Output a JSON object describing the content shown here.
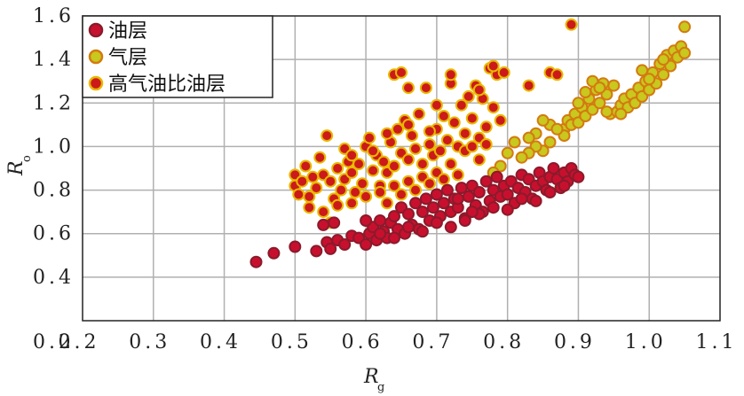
{
  "chart_data": {
    "type": "scatter",
    "xlabel": "R",
    "xlabel_sub": "g",
    "ylabel": "R",
    "ylabel_sub": "o",
    "xlim": [
      0.2,
      1.1
    ],
    "ylim": [
      0.2,
      1.6
    ],
    "x_ticks": [
      "0.2",
      "0.3",
      "0.4",
      "0.5",
      "0.6",
      "0.7",
      "0.8",
      "0.9",
      "1.0",
      "1.1"
    ],
    "y_ticks": [
      "0.4",
      "0.6",
      "0.8",
      "1.0",
      "1.2",
      "1.4",
      "1.6"
    ],
    "grid": true,
    "legend_position": "top-left",
    "series": [
      {
        "name": "油层",
        "fill": "#c8102e",
        "stroke": "#8b1a2b",
        "points": [
          [
            0.445,
            0.47
          ],
          [
            0.47,
            0.51
          ],
          [
            0.5,
            0.54
          ],
          [
            0.53,
            0.52
          ],
          [
            0.545,
            0.56
          ],
          [
            0.55,
            0.53
          ],
          [
            0.56,
            0.57
          ],
          [
            0.57,
            0.55
          ],
          [
            0.58,
            0.59
          ],
          [
            0.59,
            0.58
          ],
          [
            0.6,
            0.55
          ],
          [
            0.605,
            0.6
          ],
          [
            0.61,
            0.63
          ],
          [
            0.615,
            0.57
          ],
          [
            0.62,
            0.66
          ],
          [
            0.625,
            0.61
          ],
          [
            0.63,
            0.58
          ],
          [
            0.635,
            0.65
          ],
          [
            0.64,
            0.68
          ],
          [
            0.645,
            0.62
          ],
          [
            0.65,
            0.72
          ],
          [
            0.655,
            0.6
          ],
          [
            0.66,
            0.69
          ],
          [
            0.665,
            0.64
          ],
          [
            0.67,
            0.74
          ],
          [
            0.675,
            0.62
          ],
          [
            0.68,
            0.7
          ],
          [
            0.685,
            0.76
          ],
          [
            0.69,
            0.66
          ],
          [
            0.695,
            0.72
          ],
          [
            0.7,
            0.78
          ],
          [
            0.705,
            0.68
          ],
          [
            0.71,
            0.74
          ],
          [
            0.715,
            0.8
          ],
          [
            0.72,
            0.7
          ],
          [
            0.725,
            0.76
          ],
          [
            0.73,
            0.72
          ],
          [
            0.735,
            0.81
          ],
          [
            0.74,
            0.67
          ],
          [
            0.745,
            0.77
          ],
          [
            0.75,
            0.82
          ],
          [
            0.755,
            0.73
          ],
          [
            0.76,
            0.79
          ],
          [
            0.765,
            0.7
          ],
          [
            0.77,
            0.84
          ],
          [
            0.775,
            0.75
          ],
          [
            0.78,
            0.8
          ],
          [
            0.785,
            0.86
          ],
          [
            0.79,
            0.77
          ],
          [
            0.795,
            0.82
          ],
          [
            0.8,
            0.78
          ],
          [
            0.805,
            0.84
          ],
          [
            0.81,
            0.74
          ],
          [
            0.815,
            0.81
          ],
          [
            0.82,
            0.87
          ],
          [
            0.825,
            0.79
          ],
          [
            0.83,
            0.85
          ],
          [
            0.835,
            0.76
          ],
          [
            0.84,
            0.82
          ],
          [
            0.845,
            0.88
          ],
          [
            0.85,
            0.84
          ],
          [
            0.855,
            0.8
          ],
          [
            0.86,
            0.86
          ],
          [
            0.865,
            0.9
          ],
          [
            0.87,
            0.85
          ],
          [
            0.875,
            0.81
          ],
          [
            0.88,
            0.88
          ],
          [
            0.885,
            0.84
          ],
          [
            0.89,
            0.9
          ],
          [
            0.895,
            0.87
          ],
          [
            0.54,
            0.64
          ],
          [
            0.555,
            0.65
          ],
          [
            0.6,
            0.66
          ],
          [
            0.62,
            0.6
          ],
          [
            0.64,
            0.58
          ],
          [
            0.66,
            0.63
          ],
          [
            0.68,
            0.61
          ],
          [
            0.7,
            0.65
          ],
          [
            0.72,
            0.63
          ],
          [
            0.74,
            0.66
          ],
          [
            0.76,
            0.69
          ],
          [
            0.78,
            0.72
          ],
          [
            0.8,
            0.71
          ],
          [
            0.82,
            0.76
          ],
          [
            0.84,
            0.75
          ],
          [
            0.86,
            0.79
          ],
          [
            0.88,
            0.82
          ],
          [
            0.9,
            0.86
          ],
          [
            0.73,
            0.76
          ],
          [
            0.75,
            0.7
          ]
        ]
      },
      {
        "name": "气层",
        "fill": "#c8c81e",
        "stroke": "#d47a10",
        "points": [
          [
            0.88,
            1.08
          ],
          [
            0.885,
            1.12
          ],
          [
            0.89,
            1.1
          ],
          [
            0.895,
            1.15
          ],
          [
            0.9,
            1.11
          ],
          [
            0.905,
            1.18
          ],
          [
            0.91,
            1.14
          ],
          [
            0.915,
            1.22
          ],
          [
            0.92,
            1.17
          ],
          [
            0.925,
            1.26
          ],
          [
            0.93,
            1.2
          ],
          [
            0.935,
            1.29
          ],
          [
            0.94,
            1.24
          ],
          [
            0.95,
            1.28
          ],
          [
            0.92,
            1.3
          ],
          [
            0.93,
            1.27
          ],
          [
            0.945,
            1.15
          ],
          [
            0.955,
            1.16
          ],
          [
            0.96,
            1.19
          ],
          [
            0.965,
            1.22
          ],
          [
            0.97,
            1.18
          ],
          [
            0.975,
            1.24
          ],
          [
            0.98,
            1.2
          ],
          [
            0.985,
            1.27
          ],
          [
            0.99,
            1.23
          ],
          [
            0.995,
            1.3
          ],
          [
            1.0,
            1.26
          ],
          [
            1.005,
            1.34
          ],
          [
            1.01,
            1.29
          ],
          [
            1.015,
            1.38
          ],
          [
            1.02,
            1.33
          ],
          [
            1.025,
            1.42
          ],
          [
            1.03,
            1.37
          ],
          [
            1.035,
            1.44
          ],
          [
            1.04,
            1.41
          ],
          [
            1.045,
            1.46
          ],
          [
            1.05,
            1.43
          ],
          [
            1.05,
            1.55
          ],
          [
            1.02,
            1.4
          ],
          [
            1.0,
            1.31
          ],
          [
            0.88,
            1.05
          ],
          [
            0.86,
            1.02
          ],
          [
            0.85,
            0.98
          ],
          [
            0.84,
            1.0
          ],
          [
            0.83,
            0.97
          ],
          [
            0.82,
            0.95
          ],
          [
            0.8,
            0.97
          ],
          [
            0.79,
            0.91
          ],
          [
            0.78,
            0.88
          ],
          [
            0.86,
            1.1
          ],
          [
            0.87,
            1.08
          ],
          [
            0.85,
            1.12
          ],
          [
            0.84,
            1.06
          ],
          [
            0.83,
            1.04
          ],
          [
            0.81,
            1.02
          ],
          [
            0.9,
            1.2
          ],
          [
            0.91,
            1.25
          ],
          [
            0.94,
            1.16
          ],
          [
            0.96,
            1.15
          ],
          [
            0.99,
            1.35
          ]
        ]
      },
      {
        "name": "高气油比油层",
        "fill": "#cc1a1a",
        "stroke": "#e8b800",
        "points": [
          [
            0.5,
            0.82
          ],
          [
            0.5,
            0.87
          ],
          [
            0.505,
            0.78
          ],
          [
            0.51,
            0.84
          ],
          [
            0.515,
            0.91
          ],
          [
            0.52,
            0.77
          ],
          [
            0.525,
            0.86
          ],
          [
            0.53,
            0.81
          ],
          [
            0.535,
            0.95
          ],
          [
            0.54,
            0.87
          ],
          [
            0.545,
            1.05
          ],
          [
            0.55,
            0.84
          ],
          [
            0.555,
            0.76
          ],
          [
            0.56,
            0.9
          ],
          [
            0.565,
            0.8
          ],
          [
            0.57,
            0.85
          ],
          [
            0.575,
            0.93
          ],
          [
            0.58,
            0.88
          ],
          [
            0.585,
            0.79
          ],
          [
            0.59,
            0.92
          ],
          [
            0.595,
            0.83
          ],
          [
            0.6,
            1.0
          ],
          [
            0.605,
            1.04
          ],
          [
            0.61,
            0.89
          ],
          [
            0.615,
            0.96
          ],
          [
            0.62,
            0.82
          ],
          [
            0.625,
            0.93
          ],
          [
            0.63,
            0.88
          ],
          [
            0.635,
            1.02
          ],
          [
            0.64,
            0.91
          ],
          [
            0.645,
            1.08
          ],
          [
            0.65,
            0.97
          ],
          [
            0.655,
            1.12
          ],
          [
            0.66,
            0.94
          ],
          [
            0.665,
            1.05
          ],
          [
            0.67,
            0.99
          ],
          [
            0.675,
            1.15
          ],
          [
            0.68,
            0.92
          ],
          [
            0.685,
            1.27
          ],
          [
            0.69,
            1.01
          ],
          [
            0.695,
            0.96
          ],
          [
            0.7,
            1.08
          ],
          [
            0.705,
            0.98
          ],
          [
            0.71,
            1.14
          ],
          [
            0.715,
            1.03
          ],
          [
            0.72,
            1.29
          ],
          [
            0.725,
            1.11
          ],
          [
            0.73,
            1.0
          ],
          [
            0.735,
            1.19
          ],
          [
            0.74,
            1.06
          ],
          [
            0.745,
            1.23
          ],
          [
            0.75,
            1.13
          ],
          [
            0.755,
            1.28
          ],
          [
            0.76,
            1.04
          ],
          [
            0.765,
            1.22
          ],
          [
            0.77,
            1.09
          ],
          [
            0.775,
            1.36
          ],
          [
            0.78,
            1.18
          ],
          [
            0.785,
            1.33
          ],
          [
            0.79,
            1.12
          ],
          [
            0.74,
            0.98
          ],
          [
            0.72,
            0.92
          ],
          [
            0.7,
            0.88
          ],
          [
            0.68,
            0.86
          ],
          [
            0.66,
            0.84
          ],
          [
            0.64,
            0.82
          ],
          [
            0.62,
            0.79
          ],
          [
            0.6,
            0.77
          ],
          [
            0.58,
            0.74
          ],
          [
            0.56,
            0.73
          ],
          [
            0.54,
            0.7
          ],
          [
            0.55,
            0.65
          ],
          [
            0.63,
            0.74
          ],
          [
            0.65,
            0.78
          ],
          [
            0.67,
            0.8
          ],
          [
            0.69,
            0.83
          ],
          [
            0.71,
            0.85
          ],
          [
            0.73,
            0.87
          ],
          [
            0.76,
            0.94
          ],
          [
            0.77,
            1.01
          ],
          [
            0.64,
            1.33
          ],
          [
            0.65,
            1.34
          ],
          [
            0.66,
            1.27
          ],
          [
            0.72,
            1.33
          ],
          [
            0.76,
            1.26
          ],
          [
            0.78,
            1.37
          ],
          [
            0.795,
            1.34
          ],
          [
            0.83,
            1.28
          ],
          [
            0.86,
            1.34
          ],
          [
            0.87,
            1.33
          ],
          [
            0.89,
            1.56
          ],
          [
            0.69,
            1.07
          ],
          [
            0.7,
            1.19
          ],
          [
            0.61,
            0.98
          ],
          [
            0.57,
            0.99
          ],
          [
            0.63,
            1.06
          ],
          [
            0.66,
            1.1
          ],
          [
            0.52,
            0.72
          ],
          [
            0.58,
            0.96
          ],
          [
            0.75,
            1.0
          ]
        ]
      }
    ]
  }
}
